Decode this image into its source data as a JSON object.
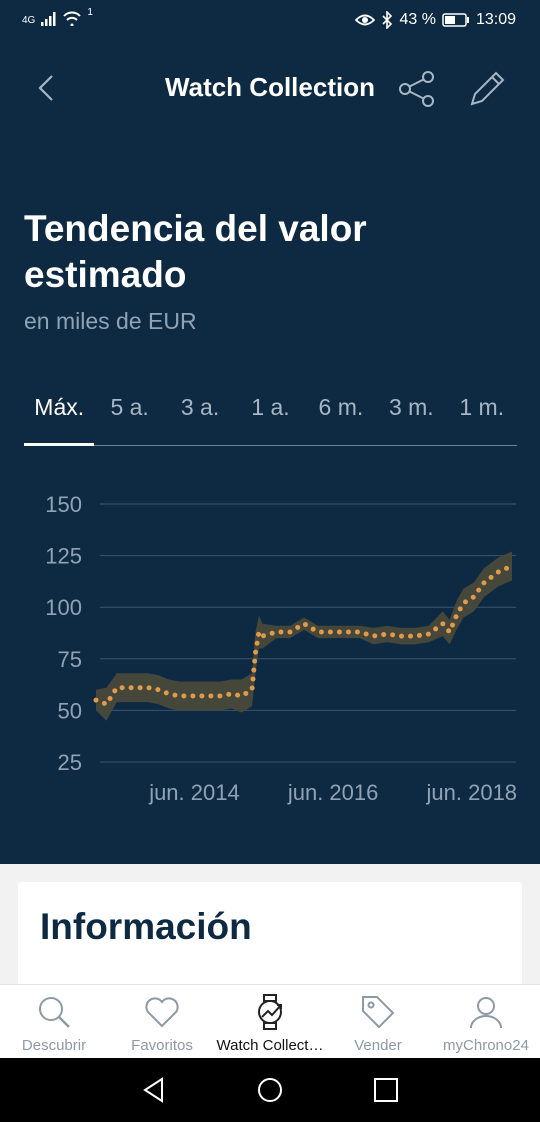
{
  "status": {
    "network": "4G",
    "sim_badge": "1",
    "battery_percent": "43 %",
    "time": "13:09"
  },
  "header": {
    "title": "Watch Collection"
  },
  "section": {
    "title": "Tendencia del valor estimado",
    "subtitle": "en miles de EUR"
  },
  "tabs": [
    {
      "label": "Máx.",
      "active": true
    },
    {
      "label": "5 a.",
      "active": false
    },
    {
      "label": "3 a.",
      "active": false
    },
    {
      "label": "1 a.",
      "active": false
    },
    {
      "label": "6 m.",
      "active": false
    },
    {
      "label": "3 m.",
      "active": false
    },
    {
      "label": "1 m.",
      "active": false
    }
  ],
  "chart_data": {
    "type": "line",
    "ylim": [
      25,
      150
    ],
    "yticks": [
      150,
      125,
      100,
      75,
      50,
      25
    ],
    "xtick_labels": [
      "jun. 2014",
      "jun. 2016",
      "jun. 2018"
    ],
    "xtick_positions": [
      2014.42,
      2016.42,
      2018.42
    ],
    "xlim": [
      2013.0,
      2019.0
    ],
    "colors": {
      "line": "#e09a4a",
      "band": "#4a4a3a",
      "grid": "#3b5570",
      "tick": "#8fa3b5"
    },
    "series": [
      {
        "x": [
          2013.0,
          2013.15,
          2013.3,
          2013.45,
          2013.6,
          2013.75,
          2013.9,
          2014.05,
          2014.2,
          2014.35,
          2014.5,
          2014.65,
          2014.8,
          2014.95,
          2015.1,
          2015.25,
          2015.3,
          2015.35,
          2015.4,
          2015.6,
          2015.8,
          2016.0,
          2016.2,
          2016.4,
          2016.6,
          2016.8,
          2017.0,
          2017.2,
          2017.4,
          2017.6,
          2017.8,
          2018.0,
          2018.1,
          2018.2,
          2018.3,
          2018.45,
          2018.6,
          2018.8,
          2019.0
        ],
        "values": [
          55,
          53,
          61,
          61,
          61,
          61,
          60,
          58,
          57,
          57,
          57,
          57,
          57,
          58,
          57,
          60,
          78,
          88,
          86,
          88,
          88,
          92,
          88,
          88,
          88,
          88,
          86,
          87,
          86,
          86,
          87,
          92,
          88,
          96,
          102,
          105,
          112,
          117,
          120
        ],
        "band": [
          5,
          8,
          7,
          7,
          7,
          7,
          7,
          7,
          7,
          7,
          7,
          7,
          7,
          7,
          8,
          8,
          10,
          8,
          6,
          3,
          3,
          3,
          3,
          3,
          3,
          3,
          4,
          4,
          4,
          4,
          4,
          6,
          6,
          7,
          7,
          7,
          7,
          7,
          7
        ]
      }
    ]
  },
  "card": {
    "title": "Información"
  },
  "bottom_nav": [
    {
      "label": "Descubrir",
      "icon": "search-icon",
      "active": false
    },
    {
      "label": "Favoritos",
      "icon": "heart-icon",
      "active": false
    },
    {
      "label": "Watch Collect…",
      "icon": "watch-icon",
      "active": true
    },
    {
      "label": "Vender",
      "icon": "tag-icon",
      "active": false
    },
    {
      "label": "myChrono24",
      "icon": "user-icon",
      "active": false
    }
  ]
}
